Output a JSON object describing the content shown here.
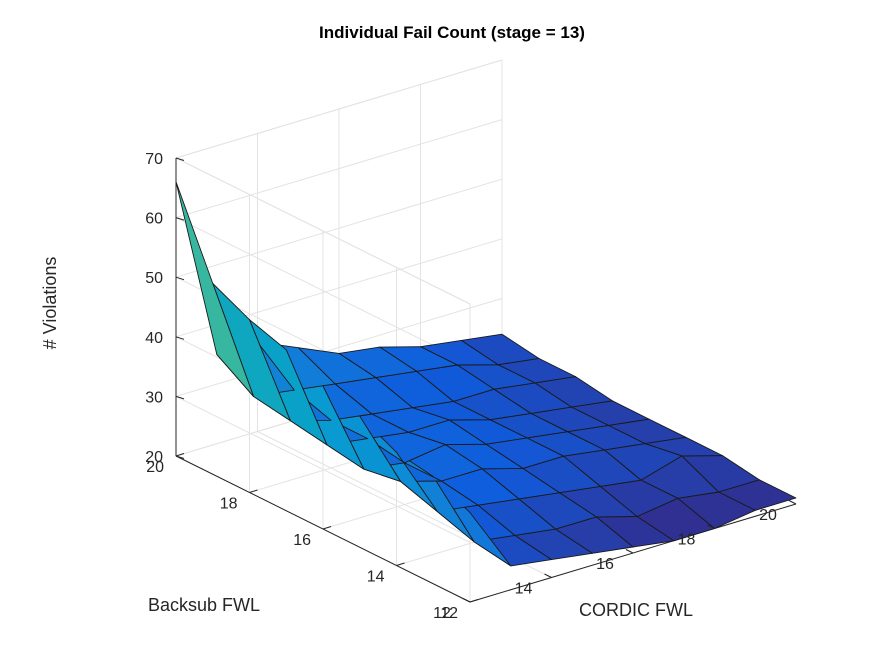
{
  "chart_data": {
    "type": "surface",
    "title": "Individual Fail Count (stage = 13)",
    "xlabel": "CORDIC FWL",
    "ylabel": "Backsub FWL",
    "zlabel": "# Violations",
    "x": [
      12,
      13,
      14,
      15,
      16,
      17,
      18,
      19,
      20
    ],
    "y": [
      12,
      13,
      14,
      15,
      16,
      17,
      18,
      19,
      20
    ],
    "xlim": [
      12,
      20
    ],
    "ylim": [
      12,
      20
    ],
    "zlim": [
      20,
      70
    ],
    "xticks": [
      12,
      14,
      16,
      18,
      20
    ],
    "yticks": [
      12,
      14,
      16,
      18,
      20
    ],
    "zticks": [
      20,
      30,
      40,
      50,
      60,
      70
    ],
    "grid": true,
    "colormap": "parula",
    "z_rows_by_backsub_12_to_20": [
      [
        35,
        24,
        23,
        22,
        21,
        20,
        20,
        21,
        21
      ],
      [
        38,
        25,
        24,
        23,
        23,
        21,
        22,
        21,
        21
      ],
      [
        39,
        27,
        26,
        25,
        24,
        23,
        22,
        24,
        22
      ],
      [
        42,
        29,
        27,
        27,
        25,
        25,
        24,
        23,
        22
      ],
      [
        44,
        28,
        27,
        28,
        26,
        25,
        24,
        23,
        22
      ],
      [
        47,
        29,
        28,
        27,
        27,
        25,
        24,
        23,
        22
      ],
      [
        49,
        30,
        28,
        27,
        26,
        25,
        25,
        24,
        23
      ],
      [
        52,
        31,
        30,
        29,
        28,
        27,
        26,
        24,
        23
      ],
      [
        66,
        35,
        35,
        32,
        29,
        28,
        26,
        25,
        24
      ]
    ]
  }
}
